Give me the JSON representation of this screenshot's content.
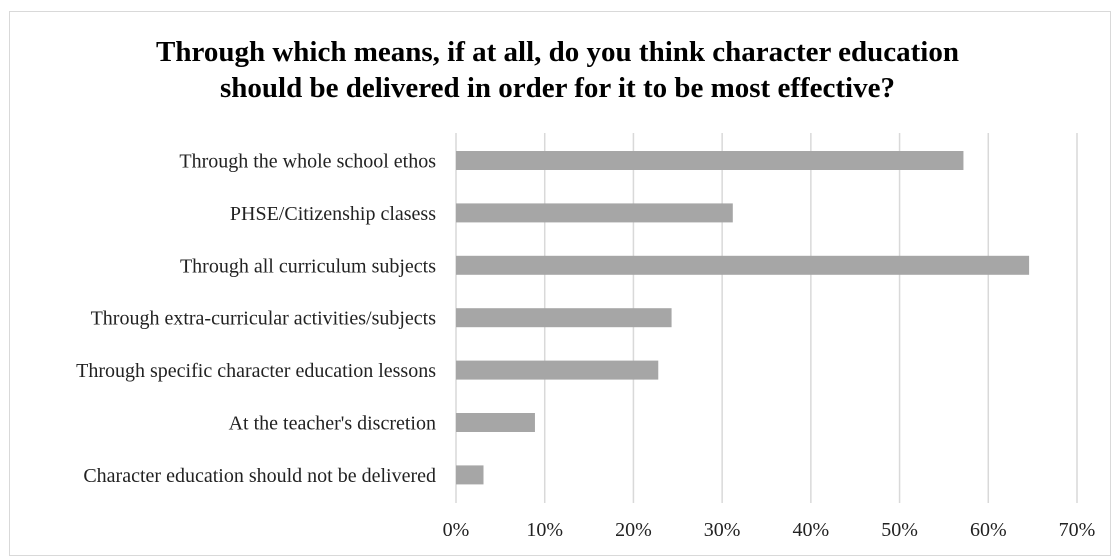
{
  "chart_data": {
    "type": "bar",
    "orientation": "horizontal",
    "title": "Through which means, if at all, do you think character education\nshould be delivered in order for it to be most effective?",
    "categories": [
      "Through the whole school ethos",
      "PHSE/Citizenship clasess",
      "Through all curriculum subjects",
      "Through extra-curricular activities/subjects",
      "Through specific character education lessons",
      "At the teacher's discretion",
      "Character education should not be delivered"
    ],
    "values": [
      57.2,
      31.2,
      64.6,
      24.3,
      22.8,
      8.9,
      3.1
    ],
    "xlim": [
      0,
      70
    ],
    "x_ticks": [
      "0%",
      "10%",
      "20%",
      "30%",
      "40%",
      "50%",
      "60%",
      "70%"
    ],
    "xlabel": "",
    "ylabel": "",
    "grid": "vertical",
    "legend": "none",
    "bar_color": "#a6a6a6",
    "grid_color": "#d9d9d9"
  }
}
